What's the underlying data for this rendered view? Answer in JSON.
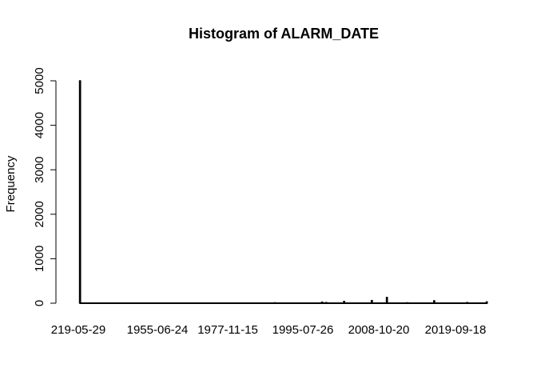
{
  "chart_data": {
    "type": "bar",
    "title": "Histogram of ALARM_DATE",
    "xlabel": "",
    "ylabel": "Frequency",
    "ylim": [
      0,
      5300
    ],
    "yticks": [
      0,
      1000,
      2000,
      3000,
      4000,
      5000
    ],
    "xticklabels": [
      "219-05-29",
      "1955-06-24",
      "1977-11-15",
      "1995-07-26",
      "2008-10-20",
      "2019-09-18"
    ],
    "x_range_fraction_of_ticks": [
      0.0,
      1.0
    ],
    "bins": [
      {
        "x": 0.0,
        "value": 5000
      },
      {
        "x": 0.478,
        "value": 10
      },
      {
        "x": 0.594,
        "value": 25
      },
      {
        "x": 0.604,
        "value": 15
      },
      {
        "x": 0.648,
        "value": 40
      },
      {
        "x": 0.716,
        "value": 60
      },
      {
        "x": 0.753,
        "value": 130
      },
      {
        "x": 0.803,
        "value": 10
      },
      {
        "x": 0.869,
        "value": 55
      },
      {
        "x": 0.95,
        "value": 15
      },
      {
        "x": 0.998,
        "value": 30
      }
    ],
    "grid": false
  }
}
